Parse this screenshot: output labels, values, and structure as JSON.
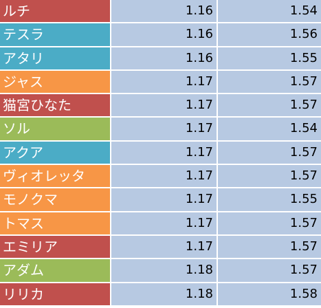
{
  "colors": {
    "red": "#c0504d",
    "teal": "#4bacc6",
    "orange": "#f79646",
    "green": "#9bbb59",
    "value_bg": "#b7c9e2"
  },
  "rows": [
    {
      "name": "ルチ",
      "color": "red",
      "v1": "1.16",
      "v2": "1.54"
    },
    {
      "name": "テスラ",
      "color": "teal",
      "v1": "1.16",
      "v2": "1.56"
    },
    {
      "name": "アタリ",
      "color": "teal",
      "v1": "1.16",
      "v2": "1.55"
    },
    {
      "name": "ジャス",
      "color": "orange",
      "v1": "1.17",
      "v2": "1.57"
    },
    {
      "name": "猫宮ひなた",
      "color": "red",
      "v1": "1.17",
      "v2": "1.57"
    },
    {
      "name": "ソル",
      "color": "green",
      "v1": "1.17",
      "v2": "1.54"
    },
    {
      "name": "アクア",
      "color": "teal",
      "v1": "1.17",
      "v2": "1.57"
    },
    {
      "name": "ヴィオレッタ",
      "color": "orange",
      "v1": "1.17",
      "v2": "1.57"
    },
    {
      "name": "モノクマ",
      "color": "orange",
      "v1": "1.17",
      "v2": "1.55"
    },
    {
      "name": "トマス",
      "color": "orange",
      "v1": "1.17",
      "v2": "1.57"
    },
    {
      "name": "エミリア",
      "color": "red",
      "v1": "1.17",
      "v2": "1.57"
    },
    {
      "name": "アダム",
      "color": "green",
      "v1": "1.18",
      "v2": "1.57"
    },
    {
      "name": "リリカ",
      "color": "red",
      "v1": "1.18",
      "v2": "1.58"
    }
  ]
}
